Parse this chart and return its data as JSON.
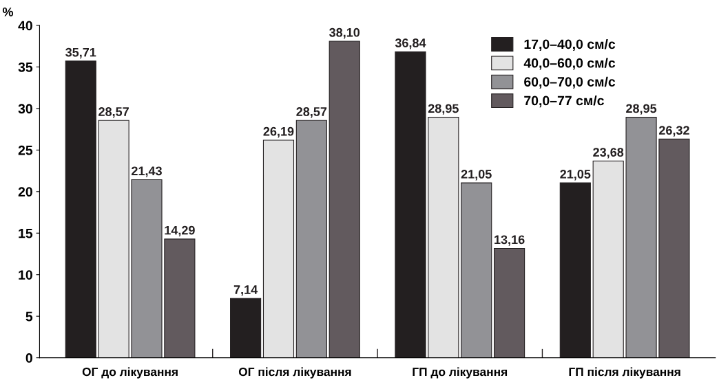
{
  "chart_data": {
    "type": "bar",
    "ylabel": "%",
    "categories": [
      "ОГ до лікування",
      "ОГ після лікування",
      "ГП до лікування",
      "ГП після лікування"
    ],
    "series": [
      {
        "name": "17,0–40,0 см/с",
        "color": "#231f20",
        "values": [
          35.71,
          7.14,
          36.84,
          21.05
        ],
        "value_labels": [
          "35,71",
          "7,14",
          "36,84",
          "21,05"
        ]
      },
      {
        "name": "40,0–60,0 см/с",
        "color": "#e3e3e3",
        "values": [
          28.57,
          26.19,
          28.95,
          23.68
        ],
        "value_labels": [
          "28,57",
          "26,19",
          "28,95",
          "23,68"
        ]
      },
      {
        "name": "60,0–70,0 см/с",
        "color": "#929296",
        "values": [
          21.43,
          28.57,
          21.05,
          28.95
        ],
        "value_labels": [
          "21,43",
          "28,57",
          "21,05",
          "28,95"
        ]
      },
      {
        "name": "70,0–77 см/с",
        "color": "#625a5e",
        "values": [
          14.29,
          38.1,
          13.16,
          26.32
        ],
        "value_labels": [
          "14,29",
          "38,10",
          "13,16",
          "26,32"
        ]
      }
    ],
    "ylim": [
      0,
      40
    ],
    "yticks": [
      0,
      5,
      10,
      15,
      20,
      25,
      30,
      35,
      40
    ],
    "grid": false,
    "legend": "top right"
  }
}
